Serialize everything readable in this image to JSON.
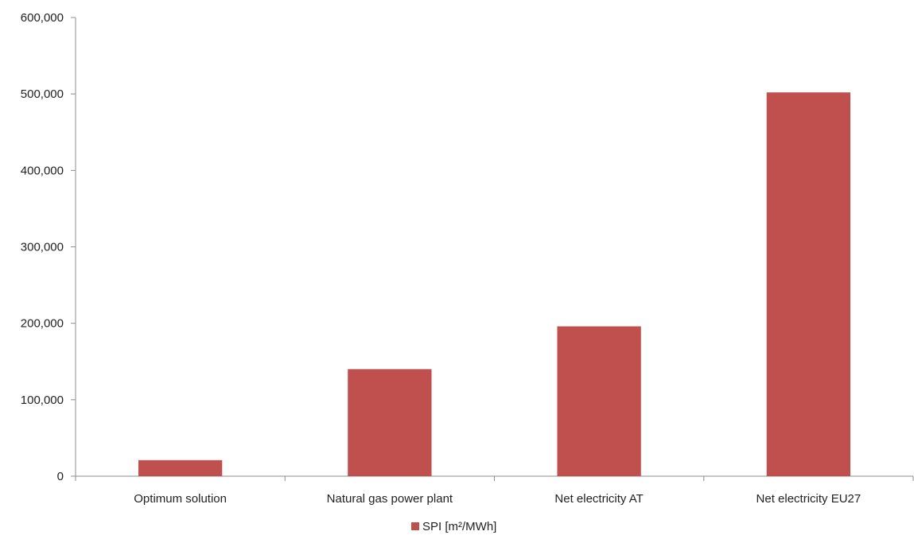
{
  "chart_data": {
    "type": "bar",
    "categories": [
      "Optimum solution",
      "Natural gas power plant",
      "Net electricity AT",
      "Net electricity EU27"
    ],
    "series": [
      {
        "name": "SPI [m²/MWh]",
        "values": [
          21000,
          140000,
          196000,
          502000
        ],
        "color": "#c0504d"
      }
    ],
    "ylim": [
      0,
      600000
    ],
    "yticks": [
      0,
      100000,
      200000,
      300000,
      400000,
      500000,
      600000
    ],
    "ytick_labels": [
      "0",
      "100,000",
      "200,000",
      "300,000",
      "400,000",
      "500,000",
      "600,000"
    ],
    "grid": false,
    "legend": "bottom"
  }
}
